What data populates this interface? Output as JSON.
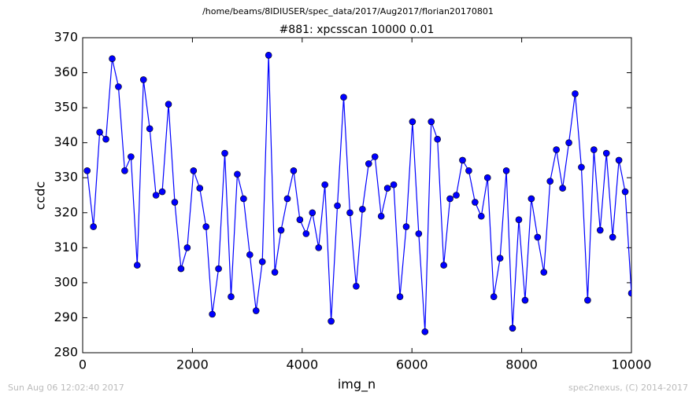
{
  "chart_data": {
    "type": "line",
    "suptitle": "/home/beams/8IDIUSER/spec_data/2017/Aug2017/florian20170801",
    "title": "#881: xpcsscan 10000 0.01",
    "xlabel": "img_n",
    "ylabel": "ccdc",
    "footer_left": "Sun Aug 06 12:02:40 2017",
    "footer_right": "spec2nexus, (C) 2014-2017",
    "xlim": [
      0,
      10000
    ],
    "xticks": [
      0,
      2000,
      4000,
      6000,
      8000,
      10000
    ],
    "ylim": [
      280,
      370
    ],
    "yticks": [
      280,
      290,
      300,
      310,
      320,
      330,
      340,
      350,
      360,
      370
    ],
    "color": "#0000ff",
    "x": [
      82,
      196,
      310,
      424,
      538,
      652,
      766,
      880,
      994,
      1108,
      1222,
      1336,
      1450,
      1564,
      1678,
      1792,
      1906,
      2020,
      2134,
      2248,
      2362,
      2476,
      2590,
      2704,
      2818,
      2932,
      3046,
      3160,
      3274,
      3388,
      3502,
      3616,
      3730,
      3844,
      3958,
      4072,
      4186,
      4300,
      4414,
      4528,
      4642,
      4756,
      4870,
      4984,
      5098,
      5212,
      5326,
      5440,
      5554,
      5668,
      5782,
      5896,
      6010,
      6124,
      6238,
      6352,
      6466,
      6580,
      6694,
      6808,
      6922,
      7036,
      7150,
      7264,
      7378,
      7492,
      7606,
      7720,
      7834,
      7948,
      8062,
      8176,
      8290,
      8404,
      8518,
      8632,
      8746,
      8860,
      8974,
      9088,
      9202,
      9316,
      9430,
      9544,
      9658,
      9772,
      9886,
      10000
    ],
    "values": [
      332,
      316,
      343,
      341,
      364,
      356,
      332,
      336,
      305,
      358,
      344,
      325,
      326,
      351,
      323,
      304,
      310,
      332,
      327,
      316,
      291,
      304,
      337,
      296,
      331,
      324,
      308,
      292,
      306,
      365,
      303,
      315,
      324,
      332,
      318,
      314,
      320,
      310,
      328,
      289,
      322,
      353,
      320,
      299,
      321,
      334,
      336,
      319,
      327,
      328,
      296,
      316,
      346,
      314,
      286,
      346,
      341,
      305,
      324,
      325,
      335,
      332,
      323,
      319,
      330,
      296,
      307,
      332,
      287,
      318,
      295,
      324,
      313,
      303,
      329,
      338,
      327,
      340,
      354,
      333,
      295,
      338,
      315,
      337,
      313,
      335,
      326,
      297
    ]
  }
}
